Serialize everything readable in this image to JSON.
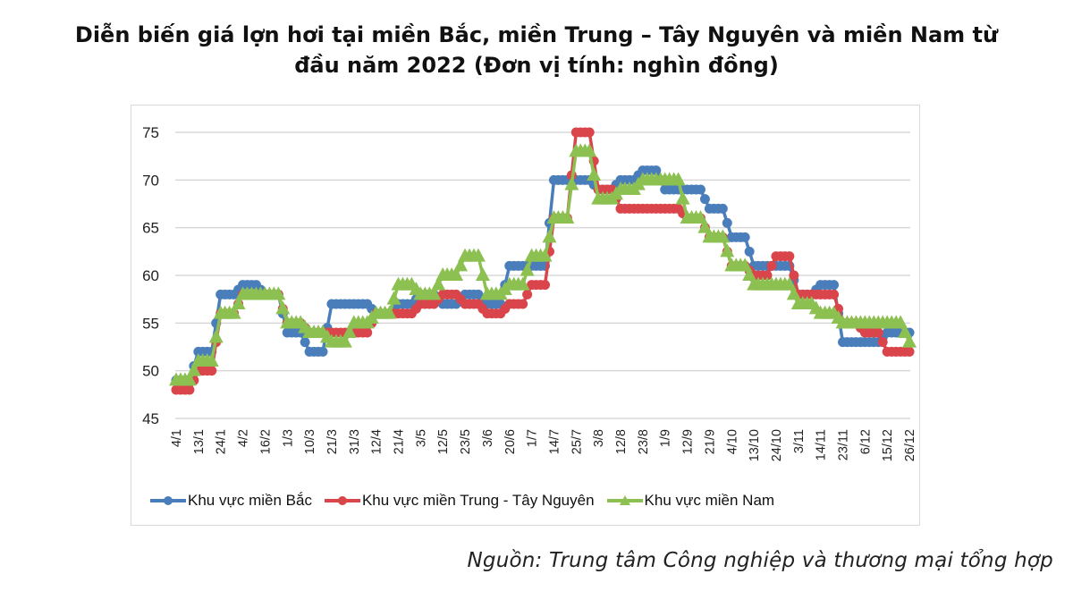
{
  "title_line1": "Diễn biến giá lợn hơi tại miền Bắc, miền Trung – Tây Nguyên và miền Nam từ",
  "title_line2": "đầu năm 2022 (Đơn vị tính: nghìn đồng)",
  "source": "Nguồn: Trung tâm Công nghiệp và thương mại tổng hợp",
  "legend": [
    {
      "label": "Khu vực miền Bắc",
      "color": "#4a7ebb",
      "marker": "circle"
    },
    {
      "label": "Khu vực miền Trung  - Tây Nguyên",
      "color": "#d9454a",
      "marker": "circle"
    },
    {
      "label": "Khu vực miền Nam",
      "color": "#8cc152",
      "marker": "triangle"
    }
  ],
  "chart_data": {
    "type": "line",
    "title": "Diễn biến giá lợn hơi tại miền Bắc, miền Trung – Tây Nguyên và miền Nam từ đầu năm 2022 (Đơn vị tính: nghìn đồng)",
    "xlabel": "",
    "ylabel": "",
    "ylim": [
      45,
      75
    ],
    "yticks": [
      45,
      50,
      55,
      60,
      65,
      70,
      75
    ],
    "grid": true,
    "legend_position": "bottom",
    "categories": [
      "4/1",
      "13/1",
      "24/1",
      "4/2",
      "16/2",
      "1/3",
      "10/3",
      "21/3",
      "31/3",
      "12/4",
      "21/4",
      "3/5",
      "12/5",
      "23/5",
      "3/6",
      "20/6",
      "1/7",
      "14/7",
      "25/7",
      "3/8",
      "12/8",
      "23/8",
      "1/9",
      "12/9",
      "21/9",
      "4/10",
      "13/10",
      "24/10",
      "3/11",
      "14/11",
      "23/11",
      "6/12",
      "15/12",
      "26/12"
    ],
    "series": [
      {
        "name": "Khu vực miền Bắc",
        "color": "#4a7ebb",
        "marker": "circle",
        "values": [
          49,
          52,
          58,
          59,
          58,
          54,
          52,
          57,
          57,
          56,
          57,
          58,
          57,
          58,
          57,
          61,
          61,
          70,
          70,
          69,
          70,
          71,
          69,
          69,
          67,
          64,
          61,
          61,
          58,
          59,
          53,
          53,
          54,
          54
        ]
      },
      {
        "name": "Khu vực miền Trung  - Tây Nguyên",
        "color": "#d9454a",
        "marker": "circle",
        "values": [
          48,
          50,
          56,
          58,
          58,
          55,
          54,
          54,
          54,
          56,
          56,
          57,
          58,
          57,
          56,
          57,
          59,
          66,
          75,
          69,
          67,
          67,
          67,
          66,
          64,
          61,
          60,
          62,
          58,
          58,
          55,
          54,
          52,
          52
        ]
      },
      {
        "name": "Khu vực miền Nam",
        "color": "#8cc152",
        "marker": "triangle",
        "values": [
          49,
          51,
          56,
          58,
          58,
          55,
          54,
          53,
          55,
          56,
          59,
          58,
          60,
          62,
          58,
          59,
          62,
          66,
          73,
          68,
          69,
          70,
          70,
          66,
          64,
          61,
          59,
          59,
          57,
          56,
          55,
          55,
          55,
          53
        ]
      }
    ]
  }
}
